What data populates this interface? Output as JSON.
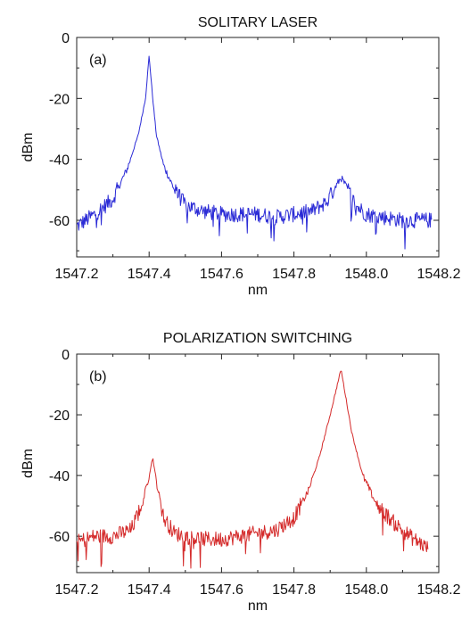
{
  "chart_data": [
    {
      "type": "line",
      "panel_label": "(a)",
      "title": "SOLITARY LASER",
      "xlabel": "nm",
      "ylabel": "dBm",
      "xlim": [
        1547.2,
        1548.2
      ],
      "ylim": [
        -72,
        0
      ],
      "xticks": [
        1547.2,
        1547.4,
        1547.6,
        1547.8,
        1548.0,
        1548.2
      ],
      "xtick_labels": [
        "1547.2",
        "1547.4",
        "1547.6",
        "1547.8",
        "1548.0",
        "1548.2"
      ],
      "yticks": [
        0,
        -20,
        -40,
        -60
      ],
      "ytick_labels": [
        "0",
        "-20",
        "-40",
        "-60"
      ],
      "grid": false,
      "color": "#2b2bd6",
      "series": [
        {
          "x": [
            1547.2,
            1547.25,
            1547.3,
            1547.34,
            1547.37,
            1547.39,
            1547.4,
            1547.41,
            1547.42,
            1547.44,
            1547.47,
            1547.5,
            1547.55,
            1547.6,
            1547.65,
            1547.7,
            1547.75,
            1547.8,
            1547.85,
            1547.89,
            1547.91,
            1547.93,
            1547.95,
            1547.97,
            1548.0,
            1548.05,
            1548.1,
            1548.15,
            1548.18
          ],
          "y": [
            -62,
            -58,
            -53,
            -43,
            -32,
            -20,
            -6,
            -20,
            -32,
            -42,
            -50,
            -55,
            -57,
            -58,
            -58,
            -58,
            -59,
            -58,
            -57,
            -54,
            -50,
            -46,
            -50,
            -55,
            -58,
            -59,
            -60,
            -60,
            -60
          ]
        }
      ]
    },
    {
      "type": "line",
      "panel_label": "(b)",
      "title": "POLARIZATION SWITCHING",
      "xlabel": "nm",
      "ylabel": "dBm",
      "xlim": [
        1547.2,
        1548.2
      ],
      "ylim": [
        -72,
        0
      ],
      "xticks": [
        1547.2,
        1547.4,
        1547.6,
        1547.8,
        1548.0,
        1548.2
      ],
      "xtick_labels": [
        "1547.2",
        "1547.4",
        "1547.6",
        "1547.8",
        "1548.0",
        "1548.2"
      ],
      "yticks": [
        0,
        -20,
        -40,
        -60
      ],
      "ytick_labels": [
        "0",
        "-20",
        "-40",
        "-60"
      ],
      "grid": false,
      "color": "#d42a2a",
      "series": [
        {
          "x": [
            1547.2,
            1547.25,
            1547.3,
            1547.35,
            1547.38,
            1547.4,
            1547.41,
            1547.42,
            1547.44,
            1547.47,
            1547.5,
            1547.55,
            1547.6,
            1547.65,
            1547.7,
            1547.75,
            1547.8,
            1547.84,
            1547.87,
            1547.9,
            1547.92,
            1547.93,
            1547.94,
            1547.96,
            1547.99,
            1548.03,
            1548.08,
            1548.12,
            1548.17
          ],
          "y": [
            -62,
            -60,
            -60,
            -58,
            -50,
            -40,
            -34,
            -42,
            -54,
            -59,
            -60,
            -61,
            -61,
            -60,
            -59,
            -58,
            -54,
            -45,
            -34,
            -20,
            -10,
            -5,
            -12,
            -26,
            -40,
            -50,
            -56,
            -60,
            -64
          ]
        }
      ]
    }
  ]
}
